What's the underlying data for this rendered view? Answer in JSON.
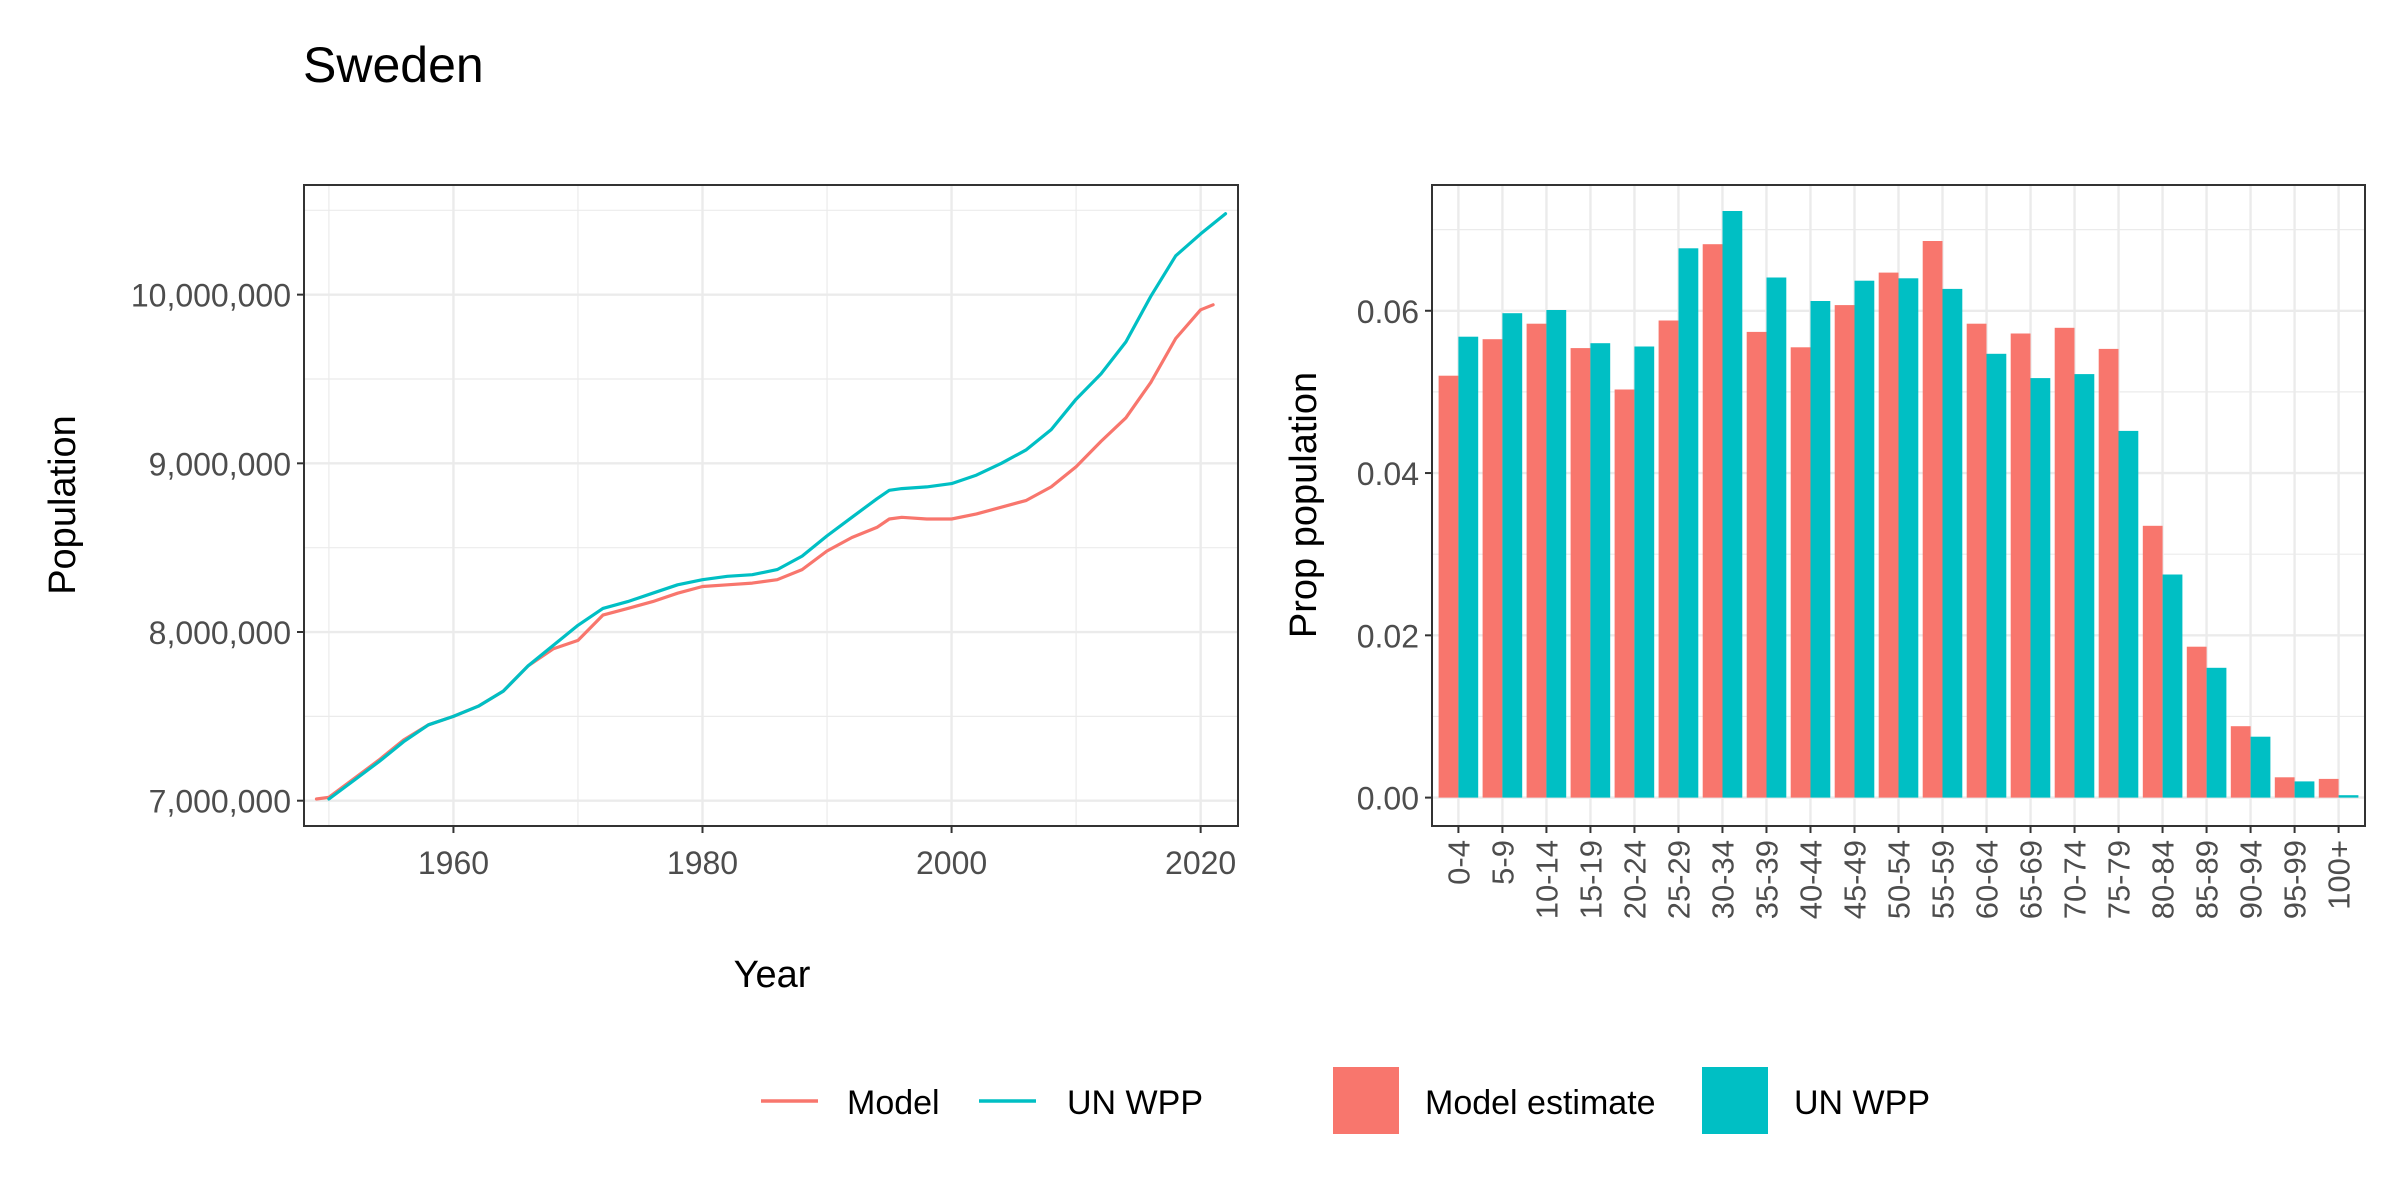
{
  "title": "Sweden",
  "colors": {
    "model": "#F8766D",
    "unwpp": "#00BFC4",
    "grid": "#EBEBEB",
    "axis_text": "#4D4D4D",
    "panel_border": "#333333"
  },
  "chart_data": [
    {
      "type": "line",
      "xlabel": "Year",
      "ylabel": "Population",
      "xlim": [
        1948,
        2023
      ],
      "ylim": [
        6850000,
        10650000
      ],
      "x_ticks": [
        1960,
        1980,
        2000,
        2020
      ],
      "x_tick_labels": [
        "1960",
        "1980",
        "2000",
        "2020"
      ],
      "y_ticks": [
        7000000,
        8000000,
        9000000,
        10000000
      ],
      "y_tick_labels": [
        "7,000,000",
        "8,000,000",
        "9,000,000",
        "10,000,000"
      ],
      "grid": true,
      "legend_position": "bottom",
      "series": [
        {
          "name": "Model",
          "color": "#F8766D",
          "x": [
            1949,
            1950,
            1952,
            1954,
            1956,
            1958,
            1960,
            1962,
            1964,
            1966,
            1968,
            1970,
            1972,
            1974,
            1976,
            1978,
            1980,
            1982,
            1984,
            1986,
            1988,
            1990,
            1992,
            1994,
            1995,
            1996,
            1998,
            2000,
            2002,
            2004,
            2006,
            2008,
            2010,
            2012,
            2014,
            2016,
            2018,
            2020,
            2021
          ],
          "y": [
            7010000,
            7020000,
            7130000,
            7240000,
            7360000,
            7450000,
            7500000,
            7560000,
            7650000,
            7800000,
            7900000,
            7950000,
            8100000,
            8140000,
            8180000,
            8230000,
            8270000,
            8280000,
            8290000,
            8310000,
            8370000,
            8480000,
            8560000,
            8620000,
            8670000,
            8680000,
            8670000,
            8670000,
            8700000,
            8740000,
            8780000,
            8860000,
            8980000,
            9130000,
            9270000,
            9480000,
            9740000,
            9910000,
            9940000
          ]
        },
        {
          "name": "UN WPP",
          "color": "#00BFC4",
          "x": [
            1950,
            1952,
            1954,
            1956,
            1958,
            1960,
            1962,
            1964,
            1966,
            1968,
            1970,
            1972,
            1974,
            1976,
            1978,
            1980,
            1982,
            1984,
            1986,
            1988,
            1990,
            1992,
            1994,
            1995,
            1996,
            1998,
            2000,
            2002,
            2004,
            2006,
            2008,
            2010,
            2012,
            2014,
            2016,
            2018,
            2020,
            2022
          ],
          "y": [
            7010000,
            7120000,
            7230000,
            7350000,
            7450000,
            7500000,
            7560000,
            7650000,
            7800000,
            7920000,
            8040000,
            8140000,
            8180000,
            8230000,
            8280000,
            8310000,
            8330000,
            8340000,
            8370000,
            8450000,
            8570000,
            8680000,
            8790000,
            8840000,
            8850000,
            8860000,
            8880000,
            8930000,
            9000000,
            9080000,
            9200000,
            9380000,
            9530000,
            9720000,
            9990000,
            10230000,
            10360000,
            10480000
          ]
        }
      ]
    },
    {
      "type": "bar",
      "xlabel": "",
      "ylabel": "Prop population",
      "ylim": [
        -0.0035,
        0.0755
      ],
      "y_ticks": [
        0,
        0.02,
        0.04,
        0.06
      ],
      "y_tick_labels": [
        "0.00",
        "0.02",
        "0.04",
        "0.06"
      ],
      "grid": true,
      "legend_position": "bottom",
      "categories": [
        "0-4",
        "5-9",
        "10-14",
        "15-19",
        "20-24",
        "25-29",
        "30-34",
        "35-39",
        "40-44",
        "45-49",
        "50-54",
        "55-59",
        "60-64",
        "65-69",
        "70-74",
        "75-79",
        "80-84",
        "85-89",
        "90-94",
        "95-99",
        "100+"
      ],
      "series": [
        {
          "name": "Model estimate",
          "color": "#F8766D",
          "values": [
            0.052,
            0.0565,
            0.0584,
            0.0554,
            0.0503,
            0.0588,
            0.0682,
            0.0574,
            0.0555,
            0.0607,
            0.0647,
            0.0686,
            0.0584,
            0.0572,
            0.0579,
            0.0553,
            0.0335,
            0.0186,
            0.0088,
            0.0025,
            0.0023
          ]
        },
        {
          "name": "UN WPP",
          "color": "#00BFC4",
          "values": [
            0.0568,
            0.0597,
            0.0601,
            0.056,
            0.0556,
            0.0677,
            0.0723,
            0.0641,
            0.0612,
            0.0637,
            0.064,
            0.0627,
            0.0547,
            0.0517,
            0.0522,
            0.0452,
            0.0275,
            0.016,
            0.0075,
            0.002,
            0.0003
          ]
        }
      ]
    }
  ]
}
